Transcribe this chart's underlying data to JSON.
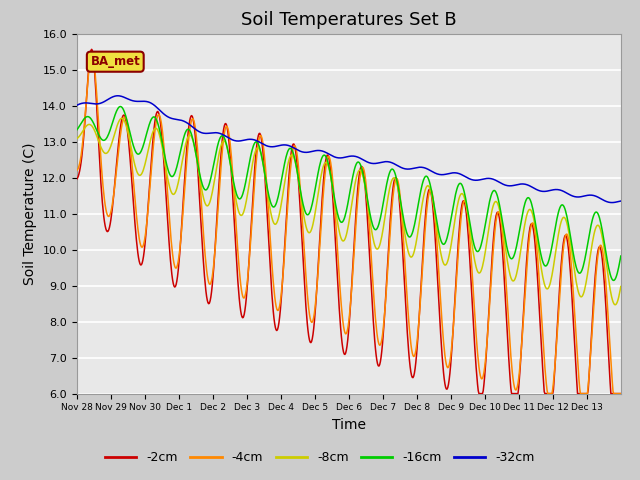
{
  "title": "Soil Temperatures Set B",
  "xlabel": "Time",
  "ylabel": "Soil Temperature (C)",
  "ylim": [
    6.0,
    16.0
  ],
  "yticks": [
    6.0,
    7.0,
    8.0,
    9.0,
    10.0,
    11.0,
    12.0,
    13.0,
    14.0,
    15.0,
    16.0
  ],
  "xtick_labels": [
    "Nov 28",
    "Nov 29",
    "Nov 30",
    "Dec 1",
    "Dec 2",
    "Dec 3",
    "Dec 4",
    "Dec 5",
    "Dec 6",
    "Dec 7",
    "Dec 8",
    "Dec 9",
    "Dec 10",
    "Dec 11",
    "Dec 12",
    "Dec 13"
  ],
  "colors": {
    "-2cm": "#cc0000",
    "-4cm": "#ff8800",
    "-8cm": "#cccc00",
    "-16cm": "#00cc00",
    "-32cm": "#0000cc"
  },
  "legend_entries": [
    "-2cm",
    "-4cm",
    "-8cm",
    "-16cm",
    "-32cm"
  ],
  "ba_met_label": "BA_met",
  "plot_bg_color": "#e8e8e8",
  "fig_bg_color": "#cccccc",
  "grid_color": "#ffffff",
  "title_fontsize": 13,
  "axis_label_fontsize": 10,
  "tick_fontsize": 8
}
